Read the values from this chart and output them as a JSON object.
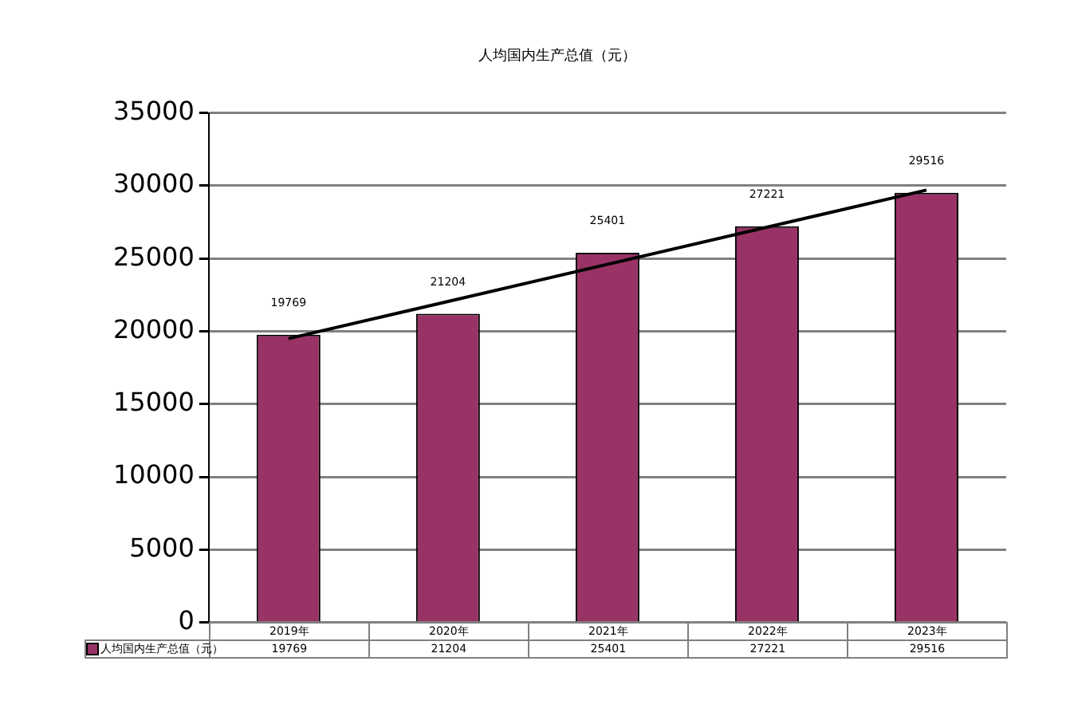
{
  "chart_data": {
    "type": "bar",
    "title": "人均国内生产总值（元）",
    "categories": [
      "2019年",
      "2020年",
      "2021年",
      "2022年",
      "2023年"
    ],
    "series": [
      {
        "name": "人均国内生产总值（元）",
        "color": "#993366",
        "values": [
          19769,
          21204,
          25401,
          27221,
          29516
        ],
        "value_labels": [
          "19769",
          "21204",
          "25401",
          "27221",
          "29516"
        ]
      },
      {
        "type": "line",
        "color": "#000000",
        "x": [
          "2019年",
          "2023年"
        ],
        "values": [
          19500,
          29700
        ]
      }
    ],
    "ylim": [
      0,
      35000
    ],
    "yticks": [
      0,
      5000,
      10000,
      15000,
      20000,
      25000,
      30000,
      35000
    ],
    "grid": "y",
    "legend": "bottom"
  }
}
